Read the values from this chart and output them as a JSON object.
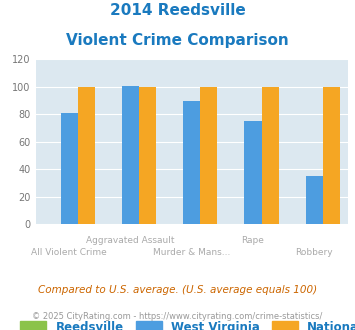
{
  "title_line1": "2014 Reedsville",
  "title_line2": "Violent Crime Comparison",
  "title_color": "#1a7abf",
  "categories": [
    "All Violent Crime",
    "Aggravated Assault",
    "Murder & Mans...",
    "Rape",
    "Robbery"
  ],
  "reedsville_values": [
    0,
    0,
    0,
    0,
    0
  ],
  "wv_values": [
    81,
    101,
    90,
    75,
    35
  ],
  "national_values": [
    100,
    100,
    100,
    100,
    100
  ],
  "reedsville_color": "#8bc34a",
  "wv_color": "#4d9de0",
  "national_color": "#f5a623",
  "ylim": [
    0,
    120
  ],
  "yticks": [
    0,
    20,
    40,
    60,
    80,
    100,
    120
  ],
  "background_color": "#dce8f0",
  "legend_labels": [
    "Reedsville",
    "West Virginia",
    "National"
  ],
  "footnote1": "Compared to U.S. average. (U.S. average equals 100)",
  "footnote2": "© 2025 CityRating.com - https://www.cityrating.com/crime-statistics/",
  "footnote1_color": "#cc6600",
  "footnote2_color": "#999999",
  "label_color": "#aaaaaa"
}
